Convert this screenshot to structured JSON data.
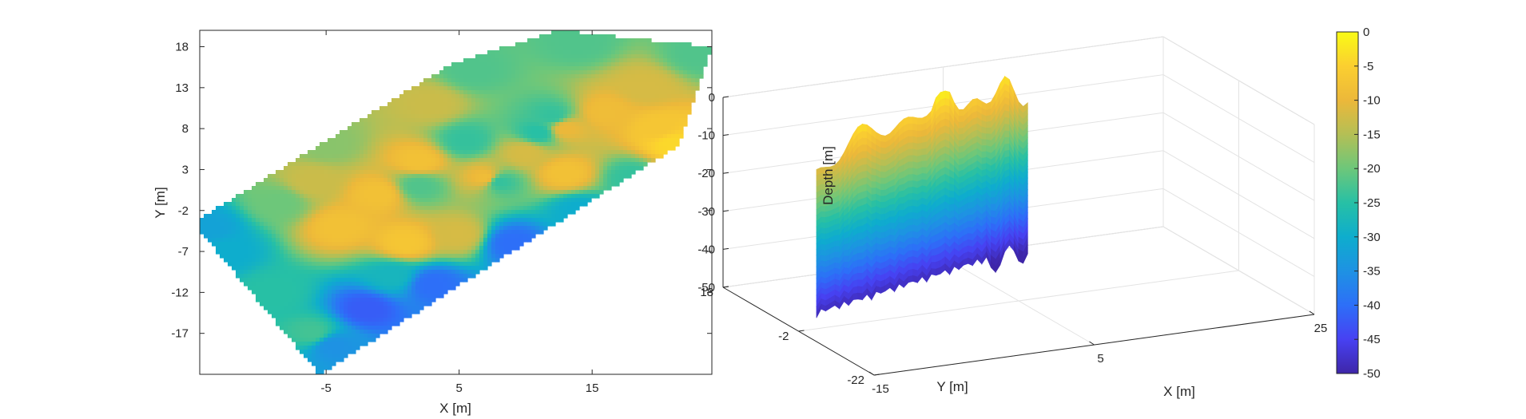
{
  "chart_data": [
    {
      "type": "heatmap",
      "xlabel": "X [m]",
      "ylabel": "Y [m]",
      "xlim": [
        -14.5,
        24
      ],
      "ylim": [
        -22,
        20
      ],
      "xticks": [
        -5,
        5,
        15
      ],
      "yticks": [
        18,
        13,
        8,
        3,
        -2,
        -7,
        -12,
        -17
      ],
      "xtick_labels": [
        "-5",
        "5",
        "15"
      ],
      "ytick_labels": [
        "18",
        "13",
        "8",
        "3",
        "-2",
        "-7",
        "-12",
        "-17"
      ],
      "value_range": [
        -50,
        0
      ],
      "boundary": [
        [
          -14.5,
          -4.5
        ],
        [
          -14.5,
          -3.0
        ],
        [
          4.5,
          16.0
        ],
        [
          12.5,
          20.0
        ],
        [
          24.0,
          18.0
        ],
        [
          21.5,
          6.0
        ],
        [
          -5.5,
          -22.0
        ]
      ],
      "points": [
        {
          "x": -13.8,
          "y": -4.2,
          "z": -32
        },
        {
          "x": -12.5,
          "y": -7.0,
          "z": -30
        },
        {
          "x": -9.0,
          "y": -12.0,
          "z": -25
        },
        {
          "x": -6.0,
          "y": -17.0,
          "z": -23
        },
        {
          "x": -8.5,
          "y": -1.0,
          "z": -20
        },
        {
          "x": -6.0,
          "y": 1.5,
          "z": -13
        },
        {
          "x": -4.0,
          "y": -4.0,
          "z": -8
        },
        {
          "x": -1.0,
          "y": 0.0,
          "z": -8
        },
        {
          "x": 2.0,
          "y": 4.0,
          "z": -8
        },
        {
          "x": 1.0,
          "y": -6.0,
          "z": -7
        },
        {
          "x": 5.0,
          "y": -5.0,
          "z": -12
        },
        {
          "x": 7.0,
          "y": 2.0,
          "z": -9
        },
        {
          "x": 10.0,
          "y": 5.0,
          "z": -12
        },
        {
          "x": 13.0,
          "y": 8.0,
          "z": -10
        },
        {
          "x": 16.0,
          "y": 10.0,
          "z": -9
        },
        {
          "x": 20.0,
          "y": 8.0,
          "z": -7
        },
        {
          "x": 21.0,
          "y": 6.2,
          "z": -4
        },
        {
          "x": 19.0,
          "y": 13.0,
          "z": -12
        },
        {
          "x": 23.0,
          "y": 17.0,
          "z": -22
        },
        {
          "x": 14.0,
          "y": 18.5,
          "z": -22
        },
        {
          "x": 6.0,
          "y": 15.0,
          "z": -22
        },
        {
          "x": 3.0,
          "y": 11.0,
          "z": -13
        },
        {
          "x": -5.0,
          "y": 6.0,
          "z": -18
        },
        {
          "x": 12.0,
          "y": 9.5,
          "z": -24
        },
        {
          "x": 11.0,
          "y": 7.5,
          "z": -25
        },
        {
          "x": 5.5,
          "y": 6.5,
          "z": -24
        },
        {
          "x": 2.0,
          "y": 1.0,
          "z": -22
        },
        {
          "x": 8.0,
          "y": 1.5,
          "z": -24
        },
        {
          "x": 13.0,
          "y": 2.5,
          "z": -8
        },
        {
          "x": 0.0,
          "y": -10.0,
          "z": -28
        },
        {
          "x": -2.0,
          "y": -14.0,
          "z": -42
        },
        {
          "x": -4.5,
          "y": -18.5,
          "z": -35
        },
        {
          "x": 3.0,
          "y": -11.0,
          "z": -40
        },
        {
          "x": 9.0,
          "y": -6.0,
          "z": -40
        },
        {
          "x": 14.0,
          "y": -2.0,
          "z": -30
        },
        {
          "x": 18.0,
          "y": 2.0,
          "z": -24
        }
      ]
    },
    {
      "type": "surface",
      "xlabel": "X [m]",
      "ylabel": "Y [m]",
      "zlabel": "Depth [m]",
      "xlim": [
        -15,
        25
      ],
      "ylim": [
        -22,
        18
      ],
      "zlim": [
        -50,
        0
      ],
      "xticks": [
        -15,
        5,
        25
      ],
      "yticks": [
        18,
        -2,
        -22
      ],
      "zticks": [
        0,
        -10,
        -20,
        -30,
        -40,
        -50
      ],
      "xtick_labels": [
        "-15",
        "5",
        "25"
      ],
      "ytick_labels": [
        "18",
        "-2",
        "-22"
      ],
      "ztick_labels": [
        "0",
        "-10",
        "-20",
        "-30",
        "-40",
        "-50"
      ],
      "grid": true,
      "colormap": "parula"
    }
  ],
  "colorbar": {
    "range": [
      -50,
      0
    ],
    "ticks": [
      0,
      -5,
      -10,
      -15,
      -20,
      -25,
      -30,
      -35,
      -40,
      -45,
      -50
    ],
    "tick_labels": [
      "0",
      "-5",
      "-10",
      "-15",
      "-20",
      "-25",
      "-30",
      "-35",
      "-40",
      "-45",
      "-50"
    ]
  },
  "colormap_stops": [
    "#3e26a8",
    "#4741f2",
    "#2d6ff8",
    "#1e92e3",
    "#0eadcd",
    "#27c0a5",
    "#6dc77a",
    "#b4bf55",
    "#ecb83a",
    "#fbcf30",
    "#f9fb15"
  ]
}
